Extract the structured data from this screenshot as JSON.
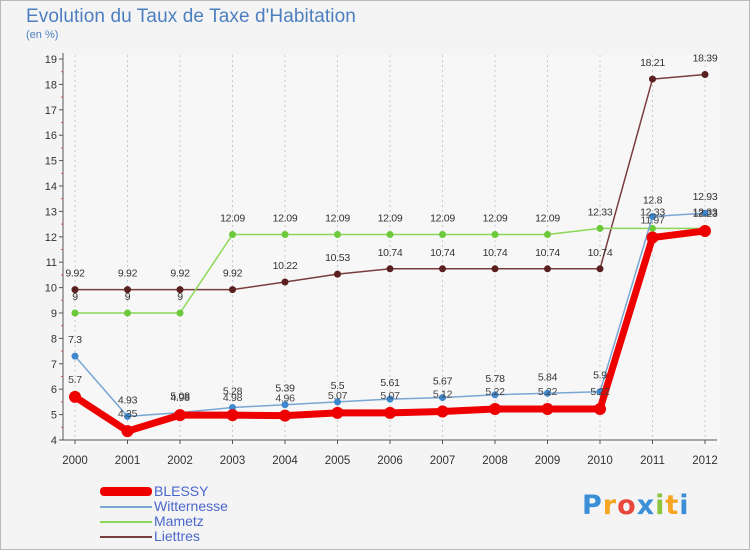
{
  "chart_data": {
    "type": "line",
    "title": "Evolution du Taux de Taxe d'Habitation",
    "ylabel": "(en %)",
    "xlabel": "",
    "categories": [
      "2000",
      "2001",
      "2002",
      "2003",
      "2004",
      "2005",
      "2006",
      "2007",
      "2008",
      "2009",
      "2010",
      "2011",
      "2012"
    ],
    "ylim": [
      4,
      19
    ],
    "yticks": [
      4,
      5,
      6,
      7,
      8,
      9,
      10,
      11,
      12,
      13,
      14,
      15,
      16,
      17,
      18,
      19
    ],
    "grid": "vertical dotted",
    "legend_position": "bottom-left",
    "series": [
      {
        "name": "BLESSY",
        "color": "#ee0000",
        "values": [
          5.7,
          4.35,
          4.98,
          4.98,
          4.96,
          5.07,
          5.07,
          5.12,
          5.22,
          5.22,
          5.22,
          11.97,
          12.23
        ],
        "labels": [
          "5.7",
          "4.35",
          "4.98",
          "4.98",
          "4.96",
          "5.07",
          "5.07",
          "5.12",
          "5.22",
          "5.22",
          "5.22",
          "11.97",
          "12.23"
        ]
      },
      {
        "name": "Witternesse",
        "color": "#7aa6d4",
        "values": [
          7.3,
          4.93,
          5.08,
          5.28,
          5.39,
          5.5,
          5.61,
          5.67,
          5.78,
          5.84,
          5.9,
          12.8,
          12.93
        ],
        "labels": [
          "7.3",
          "4.93",
          "5.08",
          "5.28",
          "5.39",
          "5.5",
          "5.61",
          "5.67",
          "5.78",
          "5.84",
          "5.9",
          "12.8",
          "12.93"
        ]
      },
      {
        "name": "Mametz",
        "color": "#8bd858",
        "values": [
          9,
          9,
          9,
          12.09,
          12.09,
          12.09,
          12.09,
          12.09,
          12.09,
          12.09,
          12.33,
          12.33,
          12.33
        ],
        "labels": [
          "9",
          "9",
          "9",
          "12.09",
          "12.09",
          "12.09",
          "12.09",
          "12.09",
          "12.09",
          "12.09",
          "12.33",
          "12.33",
          "12.33"
        ]
      },
      {
        "name": "Liettres",
        "color": "#7a3d3d",
        "values": [
          9.92,
          9.92,
          9.92,
          9.92,
          10.22,
          10.53,
          10.74,
          10.74,
          10.74,
          10.74,
          10.74,
          18.21,
          18.39
        ],
        "labels": [
          "9.92",
          "9.92",
          "9.92",
          "9.92",
          "10.22",
          "10.53",
          "10.74",
          "10.74",
          "10.74",
          "10.74",
          "10.74",
          "18.21",
          "18.39"
        ]
      }
    ]
  },
  "logo": {
    "text": "Proxiti",
    "letters": [
      "P",
      "r",
      "o",
      "x",
      "i",
      "t",
      "i"
    ],
    "colors": [
      "#3a8fd6",
      "#f5a623",
      "#e8473c",
      "#3a8fd6",
      "#8cc63f",
      "#f5a623",
      "#3a8fd6"
    ]
  }
}
